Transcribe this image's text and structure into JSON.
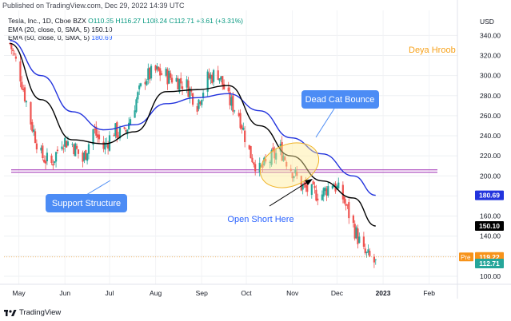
{
  "header": {
    "published": "Published on TradingView.com, Dec 29, 2022 14:39 UTC"
  },
  "legend": {
    "symbol": "Tesla, Inc., 1D, Cboe BZX",
    "ohlc": "O110.35 H116.27 L108.24 C112.71",
    "change": "+3.61 (+3.31%)",
    "ema20": "EMA (20, close, 0, SMA, 5)",
    "ema20_value": "150.10",
    "ema50": "EMA (50, close, 0, SMA, 5)",
    "ema50_value": "180.69"
  },
  "footer": {
    "brand": "TradingView"
  },
  "annotations": {
    "author": "Deya Hroob",
    "dead_cat": "Dead Cat Bounce",
    "support": "Support Structure",
    "open_short": "Open Short Here"
  },
  "colors": {
    "up": "#26a69a",
    "down": "#ef5350",
    "ema20": "#000000",
    "ema50": "#2233dd",
    "support_line": "#9c27b0",
    "label_bg": "#4c8cf5",
    "author": "#f7a21b"
  },
  "chart_data": {
    "type": "candlestick",
    "y_unit": "USD",
    "ylim": [
      92,
      365
    ],
    "y_ticks": [
      100,
      120,
      140,
      160,
      180,
      200,
      220,
      240,
      260,
      280,
      300,
      320,
      340,
      360
    ],
    "x_labels": [
      "May",
      "Jun",
      "Jul",
      "Aug",
      "Sep",
      "Oct",
      "Nov",
      "Dec",
      "2023",
      "Feb"
    ],
    "close_path": [
      {
        "date": "2022-04-25",
        "close": 332
      },
      {
        "date": "2022-05-02",
        "close": 300
      },
      {
        "date": "2022-05-09",
        "close": 254
      },
      {
        "date": "2022-05-16",
        "close": 220
      },
      {
        "date": "2022-05-23",
        "close": 212
      },
      {
        "date": "2022-05-30",
        "close": 236
      },
      {
        "date": "2022-06-06",
        "close": 232
      },
      {
        "date": "2022-06-13",
        "close": 215
      },
      {
        "date": "2022-06-20",
        "close": 246
      },
      {
        "date": "2022-06-27",
        "close": 228
      },
      {
        "date": "2022-07-04",
        "close": 245
      },
      {
        "date": "2022-07-11",
        "close": 240
      },
      {
        "date": "2022-07-18",
        "close": 272
      },
      {
        "date": "2022-07-25",
        "close": 298
      },
      {
        "date": "2022-08-01",
        "close": 304
      },
      {
        "date": "2022-08-08",
        "close": 300
      },
      {
        "date": "2022-08-15",
        "close": 296
      },
      {
        "date": "2022-08-22",
        "close": 290
      },
      {
        "date": "2022-08-29",
        "close": 272
      },
      {
        "date": "2022-09-05",
        "close": 297
      },
      {
        "date": "2022-09-12",
        "close": 303
      },
      {
        "date": "2022-09-19",
        "close": 276
      },
      {
        "date": "2022-09-26",
        "close": 262
      },
      {
        "date": "2022-10-03",
        "close": 224
      },
      {
        "date": "2022-10-10",
        "close": 205
      },
      {
        "date": "2022-10-17",
        "close": 216
      },
      {
        "date": "2022-10-24",
        "close": 226
      },
      {
        "date": "2022-10-31",
        "close": 208
      },
      {
        "date": "2022-11-07",
        "close": 190
      },
      {
        "date": "2022-11-14",
        "close": 183
      },
      {
        "date": "2022-11-21",
        "close": 182
      },
      {
        "date": "2022-11-28",
        "close": 194
      },
      {
        "date": "2022-12-05",
        "close": 178
      },
      {
        "date": "2022-12-12",
        "close": 150
      },
      {
        "date": "2022-12-19",
        "close": 123
      },
      {
        "date": "2022-12-27",
        "close": 112.71
      }
    ],
    "ema20": [
      {
        "date": "2022-04-25",
        "value": 332
      },
      {
        "date": "2022-05-16",
        "value": 276
      },
      {
        "date": "2022-06-06",
        "value": 236
      },
      {
        "date": "2022-06-27",
        "value": 232
      },
      {
        "date": "2022-07-18",
        "value": 244
      },
      {
        "date": "2022-08-08",
        "value": 284
      },
      {
        "date": "2022-08-29",
        "value": 286
      },
      {
        "date": "2022-09-19",
        "value": 290
      },
      {
        "date": "2022-10-10",
        "value": 250
      },
      {
        "date": "2022-10-31",
        "value": 220
      },
      {
        "date": "2022-11-21",
        "value": 195
      },
      {
        "date": "2022-12-12",
        "value": 178
      },
      {
        "date": "2022-12-27",
        "value": 150.1
      }
    ],
    "ema50": [
      {
        "date": "2022-04-25",
        "value": 335
      },
      {
        "date": "2022-05-16",
        "value": 300
      },
      {
        "date": "2022-06-06",
        "value": 264
      },
      {
        "date": "2022-06-27",
        "value": 246
      },
      {
        "date": "2022-07-18",
        "value": 251
      },
      {
        "date": "2022-08-08",
        "value": 272
      },
      {
        "date": "2022-08-29",
        "value": 278
      },
      {
        "date": "2022-09-19",
        "value": 282
      },
      {
        "date": "2022-10-10",
        "value": 265
      },
      {
        "date": "2022-10-31",
        "value": 238
      },
      {
        "date": "2022-11-21",
        "value": 222
      },
      {
        "date": "2022-12-12",
        "value": 200
      },
      {
        "date": "2022-12-27",
        "value": 180.69
      }
    ],
    "support_level": 206,
    "price_tags": [
      {
        "label": "",
        "value": "180.69",
        "color": "#2233dd"
      },
      {
        "label": "",
        "value": "150.10",
        "color": "#000000"
      },
      {
        "label": "Pre",
        "value": "119.22",
        "color": "#f7931a"
      },
      {
        "label": "",
        "value": "112.71",
        "color": "#26a69a"
      }
    ]
  }
}
